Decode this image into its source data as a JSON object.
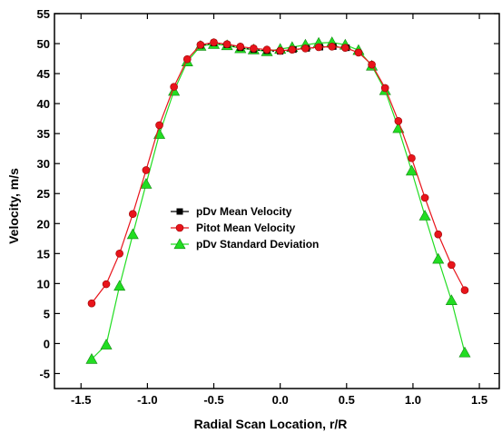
{
  "chart_data": {
    "type": "line",
    "title": "",
    "xlabel": "Radial Scan Location, r/R",
    "ylabel": "Velocity, m/s",
    "xlim": [
      -1.7,
      1.65
    ],
    "ylim": [
      -7.5,
      55
    ],
    "xticks": [
      "-1.5",
      "-1.0",
      "-0.5",
      "0.0",
      "0.5",
      "1.0",
      "1.5"
    ],
    "xtick_values": [
      -1.5,
      -1.0,
      -0.5,
      0.0,
      0.5,
      1.0,
      1.5
    ],
    "yticks": [
      "-5",
      "0",
      "5",
      "10",
      "15",
      "20",
      "25",
      "30",
      "35",
      "40",
      "45",
      "50",
      "55"
    ],
    "ytick_values": [
      -5,
      0,
      5,
      10,
      15,
      20,
      25,
      30,
      35,
      40,
      45,
      50,
      55
    ],
    "grid": false,
    "legend_position": "center-left",
    "series": [
      {
        "name": "pDv Mean Velocity",
        "color": "#000000",
        "marker": "square",
        "x": [
          -0.6,
          -0.5,
          -0.4,
          -0.3,
          -0.2,
          -0.1,
          0.0,
          0.1,
          0.2,
          0.3,
          0.4,
          0.5
        ],
        "y": [
          49.7,
          50.1,
          49.8,
          49.3,
          49.0,
          48.8,
          48.7,
          49.0,
          49.2,
          49.4,
          49.5,
          49.3
        ]
      },
      {
        "name": "Pitot Mean Velocity",
        "color": "#e8141b",
        "marker": "circle",
        "x": [
          -1.42,
          -1.31,
          -1.21,
          -1.11,
          -1.01,
          -0.91,
          -0.8,
          -0.7,
          -0.6,
          -0.5,
          -0.4,
          -0.3,
          -0.2,
          -0.1,
          0.0,
          0.09,
          0.19,
          0.29,
          0.39,
          0.49,
          0.59,
          0.69,
          0.79,
          0.89,
          0.99,
          1.09,
          1.19,
          1.29,
          1.39
        ],
        "y": [
          6.7,
          9.9,
          15.0,
          21.6,
          28.9,
          36.4,
          42.8,
          47.4,
          49.8,
          50.2,
          49.9,
          49.5,
          49.2,
          49.0,
          48.8,
          49.0,
          49.2,
          49.4,
          49.5,
          49.3,
          48.5,
          46.5,
          42.6,
          37.1,
          30.9,
          24.3,
          18.2,
          13.1,
          8.9
        ]
      },
      {
        "name": "pDv Standard Deviation",
        "color": "#22dd22",
        "marker": "triangle",
        "x": [
          -1.42,
          -1.31,
          -1.21,
          -1.11,
          -1.01,
          -0.91,
          -0.8,
          -0.7,
          -0.6,
          -0.5,
          -0.4,
          -0.3,
          -0.2,
          -0.1,
          0.0,
          0.09,
          0.19,
          0.29,
          0.39,
          0.49,
          0.59,
          0.69,
          0.79,
          0.89,
          0.99,
          1.09,
          1.19,
          1.29,
          1.39
        ],
        "y": [
          -2.6,
          -0.2,
          9.6,
          18.2,
          26.6,
          34.9,
          42.1,
          47.0,
          49.6,
          49.9,
          49.7,
          49.2,
          49.0,
          48.7,
          49.1,
          49.4,
          49.8,
          50.1,
          50.2,
          49.8,
          48.9,
          46.3,
          42.2,
          35.9,
          28.8,
          21.3,
          14.1,
          7.2,
          -1.5
        ]
      }
    ]
  }
}
